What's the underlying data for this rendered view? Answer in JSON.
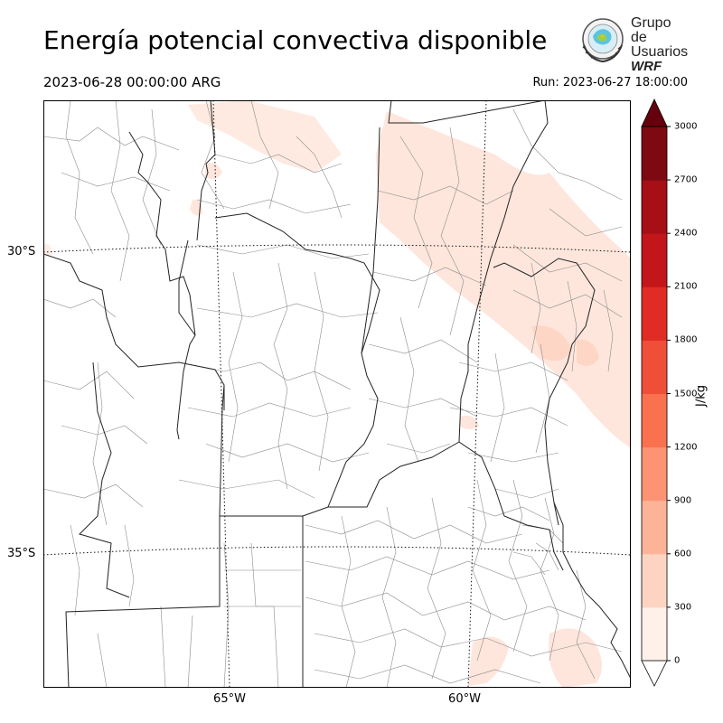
{
  "title": "Energía potencial convectiva disponible",
  "valid_time": "2023-06-28 00:00:00 ARG",
  "run_time": "Run: 2023-06-27 18:00:00",
  "logo": {
    "line1": "Grupo de",
    "line2": "Usuarios",
    "line3": "WRF",
    "icon": "wrf-globe-logo"
  },
  "map": {
    "lat_labels": [
      "30°S",
      "35°S"
    ],
    "lon_labels": [
      "65°W",
      "60°W"
    ],
    "field_color": "#fee6dc"
  },
  "colorbar": {
    "unit": "J/kg",
    "ticks": [
      "0",
      "300",
      "600",
      "900",
      "1200",
      "1500",
      "1800",
      "2100",
      "2400",
      "2700",
      "3000"
    ],
    "colors": [
      "#fff0e9",
      "#fdd4c2",
      "#fcb499",
      "#fc9373",
      "#f9714e",
      "#ef4e38",
      "#e02c25",
      "#c3161b",
      "#a60f15",
      "#7d0a10",
      "#67000d"
    ]
  }
}
